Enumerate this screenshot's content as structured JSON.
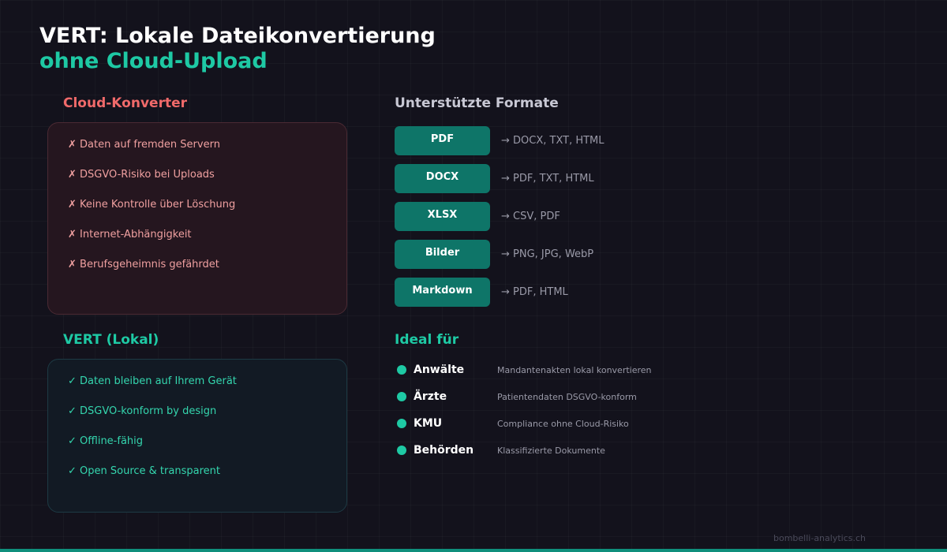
{
  "header": {
    "title_line1": "VERT: Lokale Dateikonvertierung",
    "title_line2": "ohne Cloud-Upload"
  },
  "cloud": {
    "heading": "Cloud-Konverter",
    "items": [
      "✗ Daten auf fremden Servern",
      "✗ DSGVO-Risiko bei Uploads",
      "✗ Keine Kontrolle über Löschung",
      "✗ Internet-Abhängigkeit",
      "✗ Berufsgeheimnis gefährdet"
    ]
  },
  "vert": {
    "heading": "VERT (Lokal)",
    "items": [
      "✓ Daten bleiben auf Ihrem Gerät",
      "✓ DSGVO-konform by design",
      "✓ Offline-fähig",
      "✓ Open Source & transparent"
    ]
  },
  "formats": {
    "heading": "Unterstützte Formate",
    "rows": [
      {
        "label": "PDF",
        "targets": "→ DOCX, TXT, HTML"
      },
      {
        "label": "DOCX",
        "targets": "→ PDF, TXT, HTML"
      },
      {
        "label": "XLSX",
        "targets": "→ CSV, PDF"
      },
      {
        "label": "Bilder",
        "targets": "→ PNG, JPG, WebP"
      },
      {
        "label": "Markdown",
        "targets": "→ PDF, HTML"
      }
    ]
  },
  "ideal": {
    "heading": "Ideal für",
    "rows": [
      {
        "name": "Anwälte",
        "desc": "Mandantenakten lokal konvertieren"
      },
      {
        "name": "Ärzte",
        "desc": "Patientendaten DSGVO-konform"
      },
      {
        "name": "KMU",
        "desc": "Compliance ohne Cloud-Risiko"
      },
      {
        "name": "Behörden",
        "desc": "Klassifizierte Dokumente"
      }
    ]
  },
  "footer": {
    "text": "bombelli-analytics.ch"
  },
  "colors": {
    "accent": "#1ec9a4",
    "danger": "#f06a6a",
    "badge": "#0e7568",
    "background": "#13121c"
  }
}
